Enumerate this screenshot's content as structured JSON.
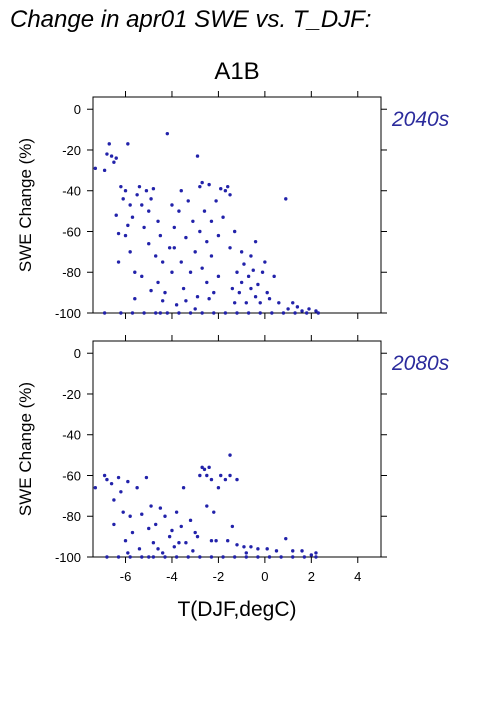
{
  "title": "Change in apr01 SWE vs. T_DJF:",
  "scenario": "A1B",
  "colors": {
    "points": "#2222aa",
    "period_label": "#2b2b9c",
    "axes": "#000000"
  },
  "chart_data": [
    {
      "type": "scatter",
      "period_label": "2040s",
      "xlabel": "T(DJF,degC)",
      "ylabel": "SWE Change (%)",
      "xlim": [
        -7.4,
        5.0
      ],
      "ylim": [
        -100,
        6
      ],
      "x_ticks": [
        "-6",
        "-4",
        "-2",
        "0",
        "2",
        "4"
      ],
      "y_ticks": [
        "0",
        "-20",
        "-40",
        "-60",
        "-80",
        "-100"
      ],
      "grid": false,
      "points": [
        [
          -7.3,
          -29
        ],
        [
          -6.9,
          -30
        ],
        [
          -6.8,
          -22
        ],
        [
          -6.7,
          -17
        ],
        [
          -6.6,
          -23
        ],
        [
          -6.5,
          -26
        ],
        [
          -6.4,
          -24
        ],
        [
          -6.2,
          -38
        ],
        [
          -6.0,
          -40
        ],
        [
          -5.9,
          -17
        ],
        [
          -6.4,
          -52
        ],
        [
          -6.3,
          -61
        ],
        [
          -6.1,
          -44
        ],
        [
          -6.3,
          -75
        ],
        [
          -6.0,
          -62
        ],
        [
          -5.9,
          -57
        ],
        [
          -5.8,
          -47
        ],
        [
          -5.8,
          -70
        ],
        [
          -5.6,
          -80
        ],
        [
          -5.7,
          -53
        ],
        [
          -5.5,
          -42
        ],
        [
          -5.4,
          -38
        ],
        [
          -5.3,
          -47
        ],
        [
          -5.2,
          -58
        ],
        [
          -5.1,
          -40
        ],
        [
          -5.0,
          -50
        ],
        [
          -5.0,
          -66
        ],
        [
          -4.9,
          -44
        ],
        [
          -4.8,
          -39
        ],
        [
          -4.7,
          -72
        ],
        [
          -4.6,
          -55
        ],
        [
          -4.6,
          -85
        ],
        [
          -4.5,
          -62
        ],
        [
          -4.4,
          -75
        ],
        [
          -4.3,
          -90
        ],
        [
          -4.2,
          -12
        ],
        [
          -4.1,
          -68
        ],
        [
          -4.0,
          -80
        ],
        [
          -4.0,
          -47
        ],
        [
          -3.9,
          -58
        ],
        [
          -3.8,
          -96
        ],
        [
          -3.7,
          -50
        ],
        [
          -3.6,
          -75
        ],
        [
          -3.6,
          -40
        ],
        [
          -3.5,
          -88
        ],
        [
          -3.4,
          -63
        ],
        [
          -3.3,
          -45
        ],
        [
          -3.2,
          -80
        ],
        [
          -3.1,
          -55
        ],
        [
          -3.0,
          -70
        ],
        [
          -2.9,
          -23
        ],
        [
          -2.9,
          -92
        ],
        [
          -2.8,
          -38
        ],
        [
          -2.8,
          -60
        ],
        [
          -2.7,
          -36
        ],
        [
          -2.7,
          -78
        ],
        [
          -2.6,
          -50
        ],
        [
          -2.5,
          -65
        ],
        [
          -2.5,
          -85
        ],
        [
          -2.4,
          -37
        ],
        [
          -2.3,
          -55
        ],
        [
          -2.3,
          -72
        ],
        [
          -2.2,
          -90
        ],
        [
          -2.1,
          -45
        ],
        [
          -2.0,
          -62
        ],
        [
          -2.0,
          -82
        ],
        [
          -1.9,
          -39
        ],
        [
          -1.8,
          -53
        ],
        [
          -1.7,
          -40
        ],
        [
          -1.6,
          -38
        ],
        [
          -1.5,
          -42
        ],
        [
          -1.5,
          -68
        ],
        [
          -1.4,
          -88
        ],
        [
          -1.3,
          -95
        ],
        [
          -1.2,
          -80
        ],
        [
          -1.1,
          -90
        ],
        [
          -1.0,
          -85
        ],
        [
          -1.0,
          -70
        ],
        [
          -0.9,
          -76
        ],
        [
          -0.8,
          -95
        ],
        [
          -0.7,
          -82
        ],
        [
          -0.6,
          -88
        ],
        [
          -0.5,
          -79
        ],
        [
          -0.4,
          -92
        ],
        [
          -0.4,
          -65
        ],
        [
          -0.3,
          -86
        ],
        [
          -0.2,
          -95
        ],
        [
          -0.1,
          -80
        ],
        [
          0.0,
          -75
        ],
        [
          0.1,
          -90
        ],
        [
          0.2,
          -93
        ],
        [
          0.4,
          -82
        ],
        [
          0.6,
          -95
        ],
        [
          0.9,
          -44
        ],
        [
          1.0,
          -98
        ],
        [
          1.2,
          -95
        ],
        [
          1.4,
          -97
        ],
        [
          1.6,
          -99
        ],
        [
          1.9,
          -98
        ],
        [
          2.2,
          -99
        ],
        [
          -5.3,
          -82
        ],
        [
          -4.9,
          -89
        ],
        [
          -4.4,
          -94
        ],
        [
          -3.9,
          -68
        ],
        [
          -3.4,
          -94
        ],
        [
          -2.4,
          -93
        ],
        [
          -1.3,
          -60
        ],
        [
          -0.6,
          -72
        ],
        [
          -5.6,
          -93
        ],
        [
          -3.0,
          -98
        ],
        [
          -6.2,
          -100
        ],
        [
          -5.7,
          -100
        ],
        [
          -5.2,
          -100
        ],
        [
          -4.7,
          -100
        ],
        [
          -4.2,
          -100
        ],
        [
          -3.7,
          -100
        ],
        [
          -3.2,
          -100
        ],
        [
          -2.7,
          -100
        ],
        [
          -2.2,
          -100
        ],
        [
          -1.7,
          -100
        ],
        [
          -1.2,
          -100
        ],
        [
          -0.7,
          -100
        ],
        [
          -0.2,
          -100
        ],
        [
          0.3,
          -100
        ],
        [
          0.8,
          -100
        ],
        [
          1.3,
          -100
        ],
        [
          1.8,
          -100
        ],
        [
          2.3,
          -100
        ],
        [
          -6.9,
          -100
        ],
        [
          -4.5,
          -100
        ]
      ]
    },
    {
      "type": "scatter",
      "period_label": "2080s",
      "xlabel": "T(DJF,degC)",
      "ylabel": "SWE Change (%)",
      "xlim": [
        -7.4,
        5.0
      ],
      "ylim": [
        -100,
        6
      ],
      "x_ticks": [
        "-6",
        "-4",
        "-2",
        "0",
        "2",
        "4"
      ],
      "y_ticks": [
        "0",
        "-20",
        "-40",
        "-60",
        "-80",
        "-100"
      ],
      "grid": false,
      "points": [
        [
          -7.3,
          -66
        ],
        [
          -6.9,
          -60
        ],
        [
          -6.8,
          -62
        ],
        [
          -6.6,
          -64
        ],
        [
          -6.5,
          -72
        ],
        [
          -6.5,
          -84
        ],
        [
          -6.3,
          -61
        ],
        [
          -6.2,
          -68
        ],
        [
          -6.1,
          -78
        ],
        [
          -6.0,
          -92
        ],
        [
          -5.9,
          -63
        ],
        [
          -5.8,
          -80
        ],
        [
          -5.7,
          -88
        ],
        [
          -5.5,
          -66
        ],
        [
          -5.4,
          -96
        ],
        [
          -5.3,
          -79
        ],
        [
          -5.1,
          -61
        ],
        [
          -5.0,
          -86
        ],
        [
          -4.9,
          -75
        ],
        [
          -4.8,
          -93
        ],
        [
          -4.7,
          -84
        ],
        [
          -4.5,
          -76
        ],
        [
          -4.4,
          -98
        ],
        [
          -4.3,
          -80
        ],
        [
          -4.1,
          -90
        ],
        [
          -4.0,
          -87
        ],
        [
          -3.9,
          -95
        ],
        [
          -3.8,
          -78
        ],
        [
          -3.6,
          -85
        ],
        [
          -3.5,
          -66
        ],
        [
          -3.4,
          -93
        ],
        [
          -3.2,
          -82
        ],
        [
          -3.1,
          -97
        ],
        [
          -3.0,
          -88
        ],
        [
          -2.9,
          -90
        ],
        [
          -2.8,
          -60
        ],
        [
          -2.7,
          -56
        ],
        [
          -2.6,
          -57
        ],
        [
          -2.5,
          -60
        ],
        [
          -2.5,
          -75
        ],
        [
          -2.4,
          -56
        ],
        [
          -2.3,
          -62
        ],
        [
          -2.2,
          -78
        ],
        [
          -2.1,
          -92
        ],
        [
          -2.0,
          -66
        ],
        [
          -1.9,
          -60
        ],
        [
          -1.7,
          -62
        ],
        [
          -1.6,
          -92
        ],
        [
          -1.5,
          -60
        ],
        [
          -1.5,
          -50
        ],
        [
          -1.4,
          -85
        ],
        [
          -1.2,
          -62
        ],
        [
          -1.2,
          -94
        ],
        [
          -0.9,
          -95
        ],
        [
          -0.6,
          -95
        ],
        [
          -0.3,
          -96
        ],
        [
          0.1,
          -96
        ],
        [
          0.5,
          -97
        ],
        [
          0.9,
          -91
        ],
        [
          1.2,
          -97
        ],
        [
          1.6,
          -97
        ],
        [
          2.0,
          -99
        ],
        [
          2.2,
          -98
        ],
        [
          -5.9,
          -98
        ],
        [
          -4.6,
          -96
        ],
        [
          -3.7,
          -93
        ],
        [
          -2.3,
          -92
        ],
        [
          -0.8,
          -98
        ],
        [
          -6.3,
          -100
        ],
        [
          -5.8,
          -100
        ],
        [
          -5.3,
          -100
        ],
        [
          -4.8,
          -100
        ],
        [
          -4.3,
          -100
        ],
        [
          -3.8,
          -100
        ],
        [
          -3.3,
          -100
        ],
        [
          -2.8,
          -100
        ],
        [
          -2.3,
          -100
        ],
        [
          -1.8,
          -100
        ],
        [
          -1.3,
          -100
        ],
        [
          -0.8,
          -100
        ],
        [
          -0.3,
          -100
        ],
        [
          0.2,
          -100
        ],
        [
          0.7,
          -100
        ],
        [
          1.2,
          -100
        ],
        [
          1.7,
          -100
        ],
        [
          2.2,
          -100
        ],
        [
          -6.8,
          -100
        ],
        [
          -5.0,
          -100
        ]
      ]
    }
  ]
}
